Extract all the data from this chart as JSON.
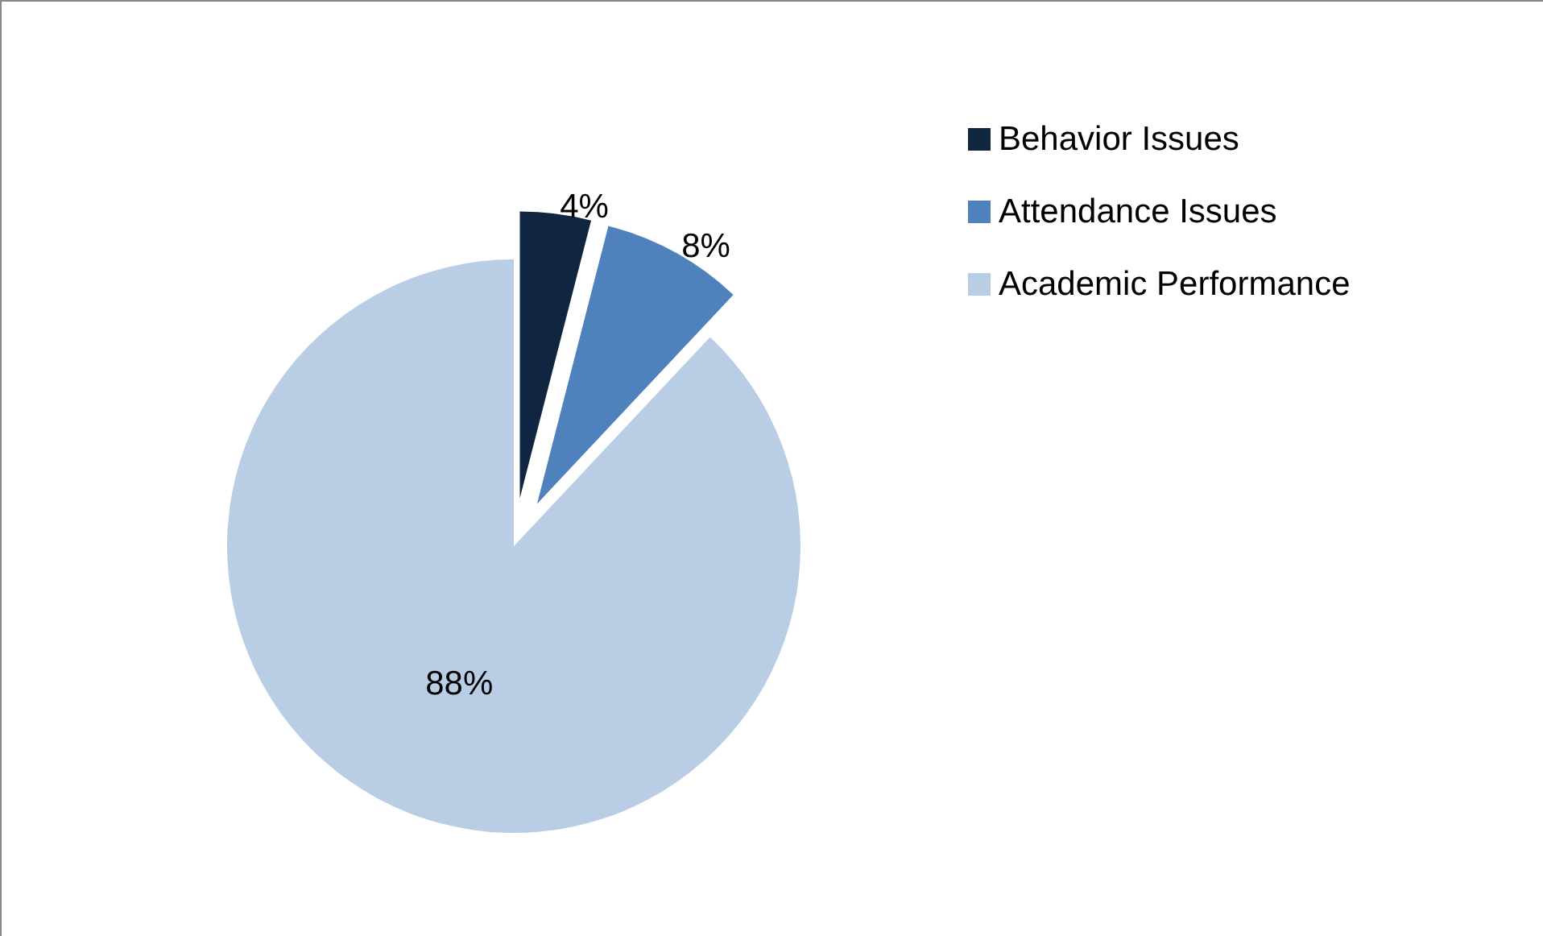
{
  "chart_data": {
    "type": "pie",
    "categories": [
      "Behavior Issues",
      "Attendance Issues",
      "Academic Performance"
    ],
    "values": [
      4,
      8,
      88
    ],
    "colors": [
      "#10253f",
      "#4f81bd",
      "#b9cde5"
    ],
    "value_labels": [
      "4%",
      "8%",
      "88%"
    ],
    "legend": "right"
  }
}
